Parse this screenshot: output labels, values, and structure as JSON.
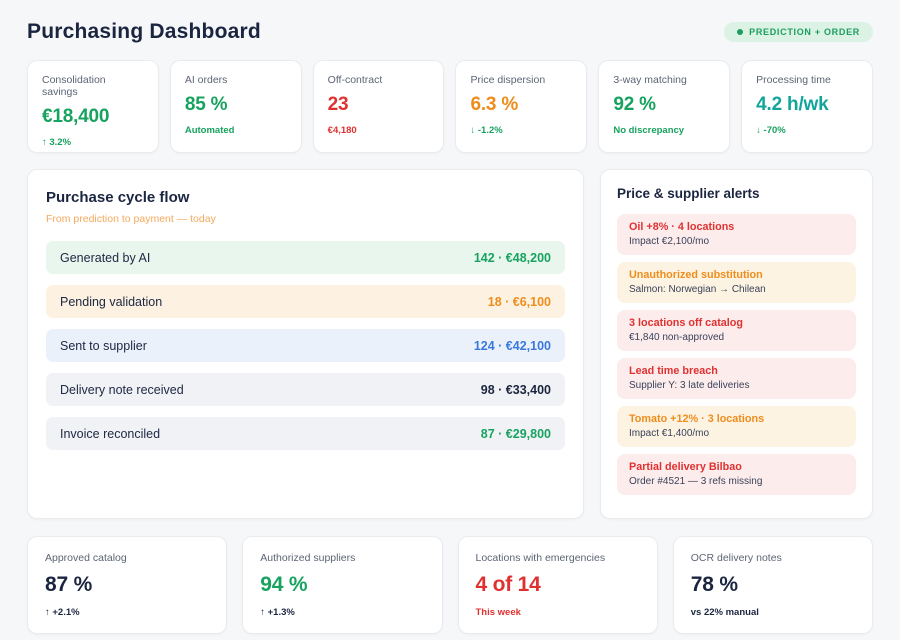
{
  "header": {
    "title": "Purchasing Dashboard",
    "badge": "PREDICTION + ORDER"
  },
  "kpis": [
    {
      "label": "Consolidation savings",
      "value": "€18,400",
      "note": "↑ 3.2%"
    },
    {
      "label": "AI orders",
      "value": "85 %",
      "note": "Automated"
    },
    {
      "label": "Off-contract",
      "value": "23",
      "note": "€4,180"
    },
    {
      "label": "Price dispersion",
      "value": "6.3 %",
      "note": "↓ -1.2%"
    },
    {
      "label": "3-way matching",
      "value": "92 %",
      "note": "No discrepancy"
    },
    {
      "label": "Processing time",
      "value": "4.2 h/wk",
      "note": "↓ -70%"
    }
  ],
  "cycle": {
    "title": "Purchase cycle flow",
    "subtitle": "From prediction to payment — today",
    "rows": [
      {
        "label": "Generated by AI",
        "value": "142 · €48,200"
      },
      {
        "label": "Pending validation",
        "value": "18 · €6,100"
      },
      {
        "label": "Sent to supplier",
        "value": "124 · €42,100"
      },
      {
        "label": "Delivery note received",
        "value": "98 · €33,400"
      },
      {
        "label": "Invoice reconciled",
        "value": "87 · €29,800"
      }
    ]
  },
  "alerts": {
    "title": "Price & supplier alerts",
    "items": [
      {
        "title": "Oil +8% · 4 locations",
        "subtitle": "Impact €2,100/mo"
      },
      {
        "title": "Unauthorized substitution",
        "subtitle": "Salmon: Norwegian → Chilean"
      },
      {
        "title": "3 locations off catalog",
        "subtitle": "€1,840 non-approved"
      },
      {
        "title": "Lead time breach",
        "subtitle": "Supplier Y: 3 late deliveries"
      },
      {
        "title": "Tomato +12% · 3 locations",
        "subtitle": "Impact €1,400/mo"
      },
      {
        "title": "Partial delivery Bilbao",
        "subtitle": "Order #4521 — 3 refs missing"
      }
    ]
  },
  "bottom_kpis": [
    {
      "label": "Approved catalog",
      "value": "87 %",
      "note": "↑ +2.1%"
    },
    {
      "label": "Authorized suppliers",
      "value": "94 %",
      "note": "↑ +1.3%"
    },
    {
      "label": "Locations with emergencies",
      "value": "4 of 14",
      "note": "This week"
    },
    {
      "label": "OCR delivery notes",
      "value": "78 %",
      "note": "vs 22% manual"
    }
  ],
  "colors": {
    "green": "#17a35f",
    "red": "#e03131",
    "orange": "#ef8d1c",
    "blue": "#3b78dd",
    "teal": "#13a59c",
    "navy": "#1b2540",
    "page_bg": "#f6f7f8",
    "badge_bg": "#dcf2e5",
    "row_green_bg": "#e9f6ee",
    "row_orange_bg": "#fdf2e1",
    "row_blue_bg": "#eaf1fb",
    "row_gray_bg": "#f1f2f5",
    "alert_red_bg": "#fdecec",
    "alert_orange_bg": "#fdf3e2"
  }
}
